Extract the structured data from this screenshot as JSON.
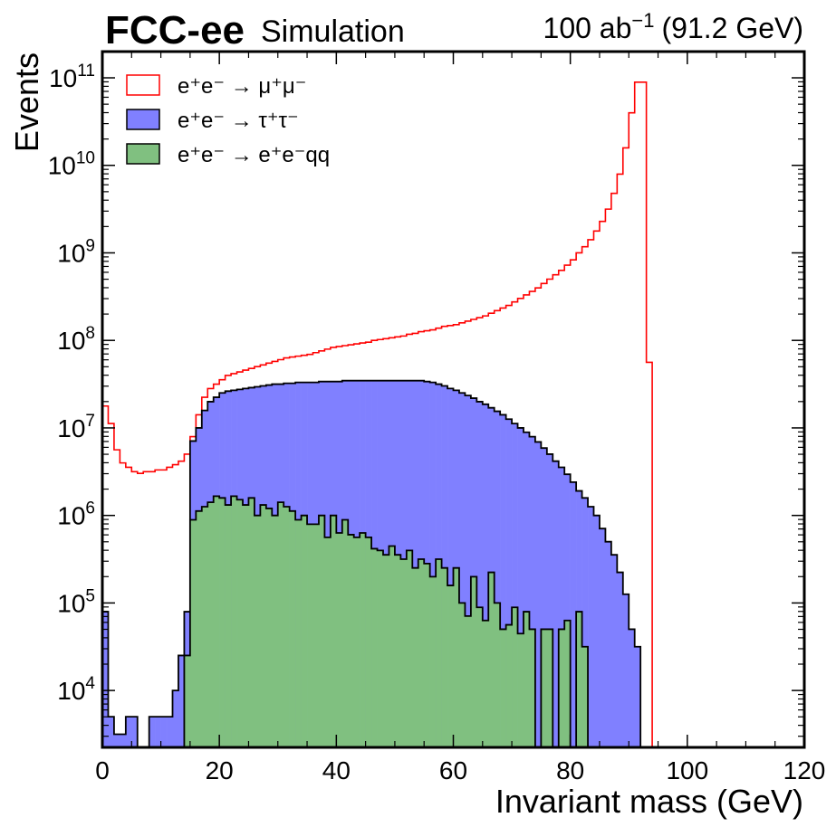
{
  "chart_data": {
    "type": "step-histogram",
    "header": {
      "experiment": "FCC-ee",
      "status": "Simulation",
      "lumi_prefix": "100 ab",
      "lumi_exponent": "−1",
      "energy": "(91.2 GeV)"
    },
    "xlabel": "Invariant mass (GeV)",
    "ylabel": "Events",
    "xlim": [
      0,
      120
    ],
    "ylim_log10": [
      3.35,
      11.3
    ],
    "yscale": "log",
    "x_ticks": [
      "0",
      "20",
      "40",
      "60",
      "80",
      "100",
      "120"
    ],
    "x_tick_values": [
      0,
      20,
      40,
      60,
      80,
      100,
      120
    ],
    "y_tick_exponents": [
      4,
      5,
      6,
      7,
      8,
      9,
      10,
      11
    ],
    "y_tick_base": "10",
    "bin_width": 1,
    "legend_position": "top-left",
    "series": [
      {
        "name": "e⁺e⁻ → μ⁺μ⁻",
        "style": "step",
        "color": "#ff0000",
        "log10_values": [
          7.25,
          7.05,
          6.75,
          6.6,
          6.55,
          6.5,
          6.48,
          6.5,
          6.5,
          6.52,
          6.52,
          6.55,
          6.58,
          6.62,
          6.7,
          6.9,
          7.15,
          7.35,
          7.45,
          7.5,
          7.55,
          7.6,
          7.62,
          7.64,
          7.66,
          7.68,
          7.7,
          7.72,
          7.74,
          7.76,
          7.78,
          7.8,
          7.81,
          7.82,
          7.83,
          7.84,
          7.86,
          7.88,
          7.9,
          7.92,
          7.93,
          7.94,
          7.95,
          7.96,
          7.97,
          7.98,
          8.0,
          8.01,
          8.02,
          8.03,
          8.04,
          8.05,
          8.07,
          8.08,
          8.1,
          8.11,
          8.12,
          8.14,
          8.16,
          8.17,
          8.18,
          8.2,
          8.22,
          8.24,
          8.26,
          8.28,
          8.31,
          8.34,
          8.37,
          8.4,
          8.44,
          8.48,
          8.52,
          8.56,
          8.6,
          8.65,
          8.7,
          8.75,
          8.8,
          8.86,
          8.92,
          9.0,
          9.07,
          9.15,
          9.25,
          9.36,
          9.5,
          9.68,
          9.9,
          10.2,
          10.6,
          10.95,
          10.95,
          7.75,
          3.2,
          3.2,
          null,
          null,
          null,
          null,
          null,
          null,
          null,
          null,
          null,
          null,
          null,
          null,
          null,
          null,
          null,
          null,
          null,
          null,
          null,
          null,
          null,
          null,
          null,
          null,
          null,
          null,
          null,
          null
        ]
      },
      {
        "name": "e⁺e⁻ → τ⁺τ⁻",
        "style": "filled-step",
        "color": "#8080ff",
        "log10_values": [
          4.9,
          3.7,
          3.5,
          3.5,
          3.7,
          3.7,
          3.3,
          3.3,
          3.7,
          3.7,
          3.7,
          3.7,
          4.0,
          4.4,
          4.9,
          6.85,
          7.0,
          7.2,
          7.3,
          7.35,
          7.4,
          7.42,
          7.43,
          7.44,
          7.45,
          7.46,
          7.47,
          7.48,
          7.49,
          7.5,
          7.5,
          7.51,
          7.51,
          7.52,
          7.52,
          7.52,
          7.52,
          7.53,
          7.53,
          7.53,
          7.53,
          7.54,
          7.54,
          7.54,
          7.54,
          7.54,
          7.54,
          7.54,
          7.54,
          7.54,
          7.54,
          7.54,
          7.54,
          7.54,
          7.54,
          7.53,
          7.52,
          7.5,
          7.48,
          7.45,
          7.43,
          7.4,
          7.37,
          7.34,
          7.3,
          7.27,
          7.23,
          7.19,
          7.15,
          7.1,
          7.05,
          7.0,
          6.95,
          6.9,
          6.84,
          6.77,
          6.7,
          6.62,
          6.55,
          6.47,
          6.38,
          6.28,
          6.2,
          6.1,
          6.0,
          5.85,
          5.7,
          5.55,
          5.35,
          5.1,
          4.7,
          4.5,
          null,
          null,
          null,
          null,
          null,
          null,
          null,
          null,
          null,
          null,
          null,
          null,
          null,
          null,
          null,
          null,
          null,
          null,
          null,
          null,
          null,
          null,
          null,
          null,
          null,
          null,
          null,
          null,
          null,
          null
        ]
      },
      {
        "name": "e⁺e⁻ → e⁺e⁻qq",
        "style": "filled-step",
        "color": "#80c080",
        "log10_values": [
          null,
          null,
          null,
          null,
          null,
          null,
          null,
          null,
          null,
          null,
          null,
          null,
          null,
          3.35,
          4.4,
          5.95,
          6.05,
          6.1,
          6.15,
          6.22,
          6.2,
          6.12,
          6.22,
          6.18,
          6.12,
          6.2,
          6.0,
          6.12,
          6.08,
          6.0,
          6.15,
          6.1,
          6.05,
          5.95,
          6.0,
          5.9,
          5.9,
          6.0,
          5.75,
          6.0,
          5.8,
          5.95,
          5.78,
          5.75,
          5.8,
          5.75,
          5.62,
          5.6,
          5.55,
          5.65,
          5.55,
          5.5,
          5.6,
          5.4,
          5.5,
          5.45,
          5.3,
          5.5,
          5.4,
          5.2,
          5.4,
          5.0,
          4.85,
          5.3,
          4.95,
          4.8,
          5.35,
          5.0,
          4.7,
          4.75,
          4.95,
          4.65,
          4.9,
          4.7,
          3.35,
          4.7,
          4.7,
          3.35,
          4.7,
          4.8,
          3.35,
          4.9,
          4.5,
          3.35,
          3.35,
          3.35,
          3.35,
          3.35,
          3.35,
          3.35,
          null,
          null,
          null,
          null,
          null,
          null,
          null,
          null,
          null,
          null,
          null,
          null,
          null,
          null,
          null,
          null,
          null,
          null,
          null,
          null,
          null,
          null,
          null,
          null,
          null,
          null,
          null,
          null,
          null,
          null
        ]
      }
    ]
  }
}
